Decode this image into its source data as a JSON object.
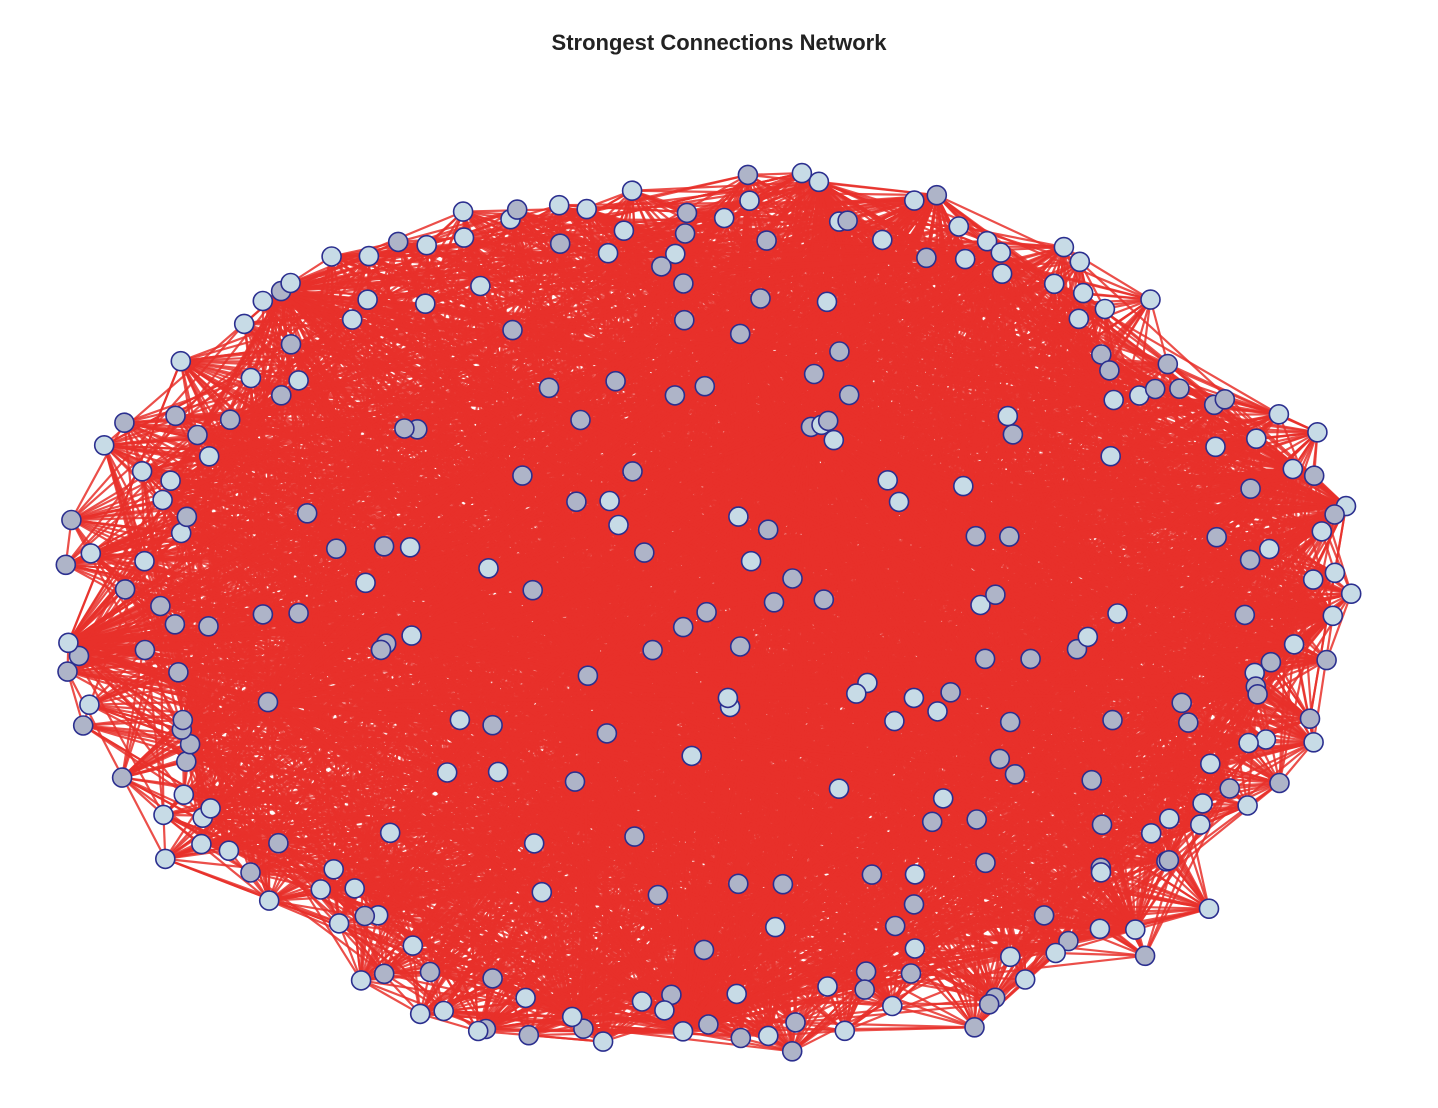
{
  "title": "Strongest Connections Network",
  "graph": {
    "edge_color": "#e8302a",
    "node_fill_light": "#c7dbe6",
    "node_fill_dark": "#aeb4c8",
    "node_stroke": "#2b2f8f",
    "node_count": 300
  }
}
